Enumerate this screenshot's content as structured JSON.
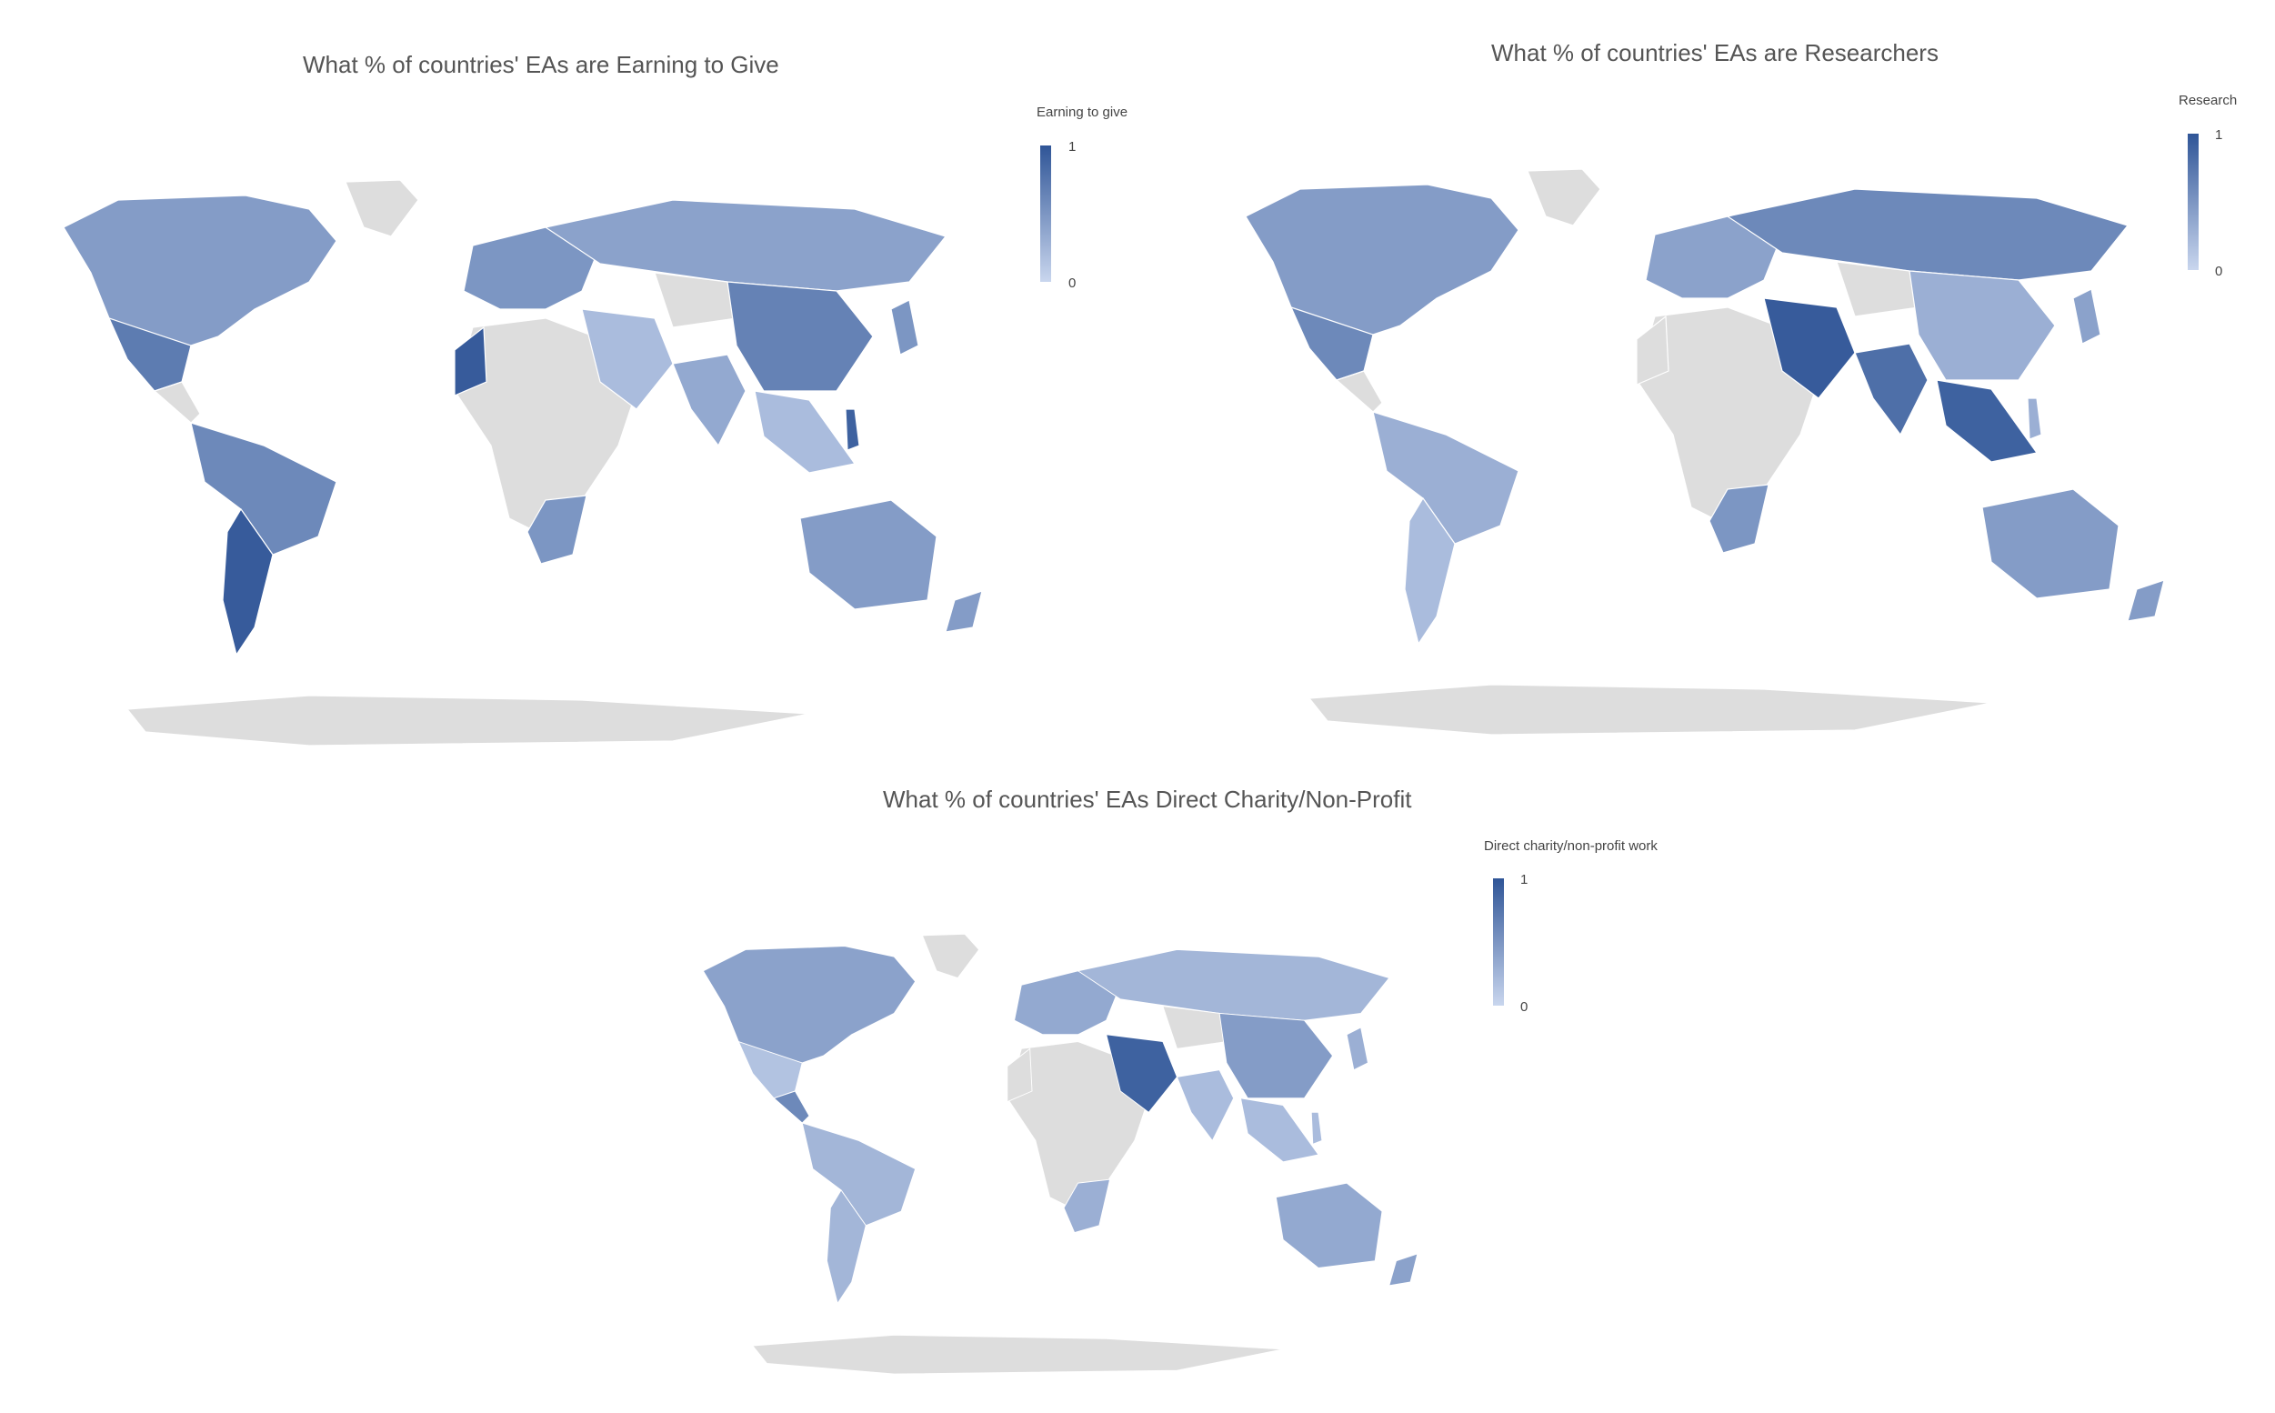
{
  "maps": [
    {
      "id": "earning",
      "title": "What % of countries' EAs are Earning to Give",
      "legend": {
        "title": "Earning to give",
        "max_label": "1",
        "min_label": "0"
      },
      "regions": {
        "north-america": 0.45,
        "greenland": null,
        "mexico": 0.7,
        "central-america": null,
        "south-america": 0.6,
        "argentina": 0.95,
        "europe": 0.5,
        "russia": 0.4,
        "africa": null,
        "morocco": 0.95,
        "southern-africa": 0.5,
        "middle-east": 0.2,
        "central-asia": null,
        "china": 0.65,
        "india": 0.35,
        "southeast-asia": 0.2,
        "philippines": 0.9,
        "japan": 0.5,
        "australia": 0.45,
        "new-zealand": 0.45,
        "antarctica": null
      }
    },
    {
      "id": "research",
      "title": "What % of countries' EAs are Researchers",
      "legend": {
        "title": "Research",
        "max_label": "1",
        "min_label": "0"
      },
      "regions": {
        "north-america": 0.45,
        "greenland": null,
        "mexico": 0.6,
        "central-america": null,
        "south-america": 0.3,
        "argentina": 0.2,
        "europe": 0.4,
        "russia": 0.6,
        "africa": null,
        "morocco": null,
        "southern-africa": 0.5,
        "middle-east": 0.95,
        "central-asia": null,
        "china": 0.3,
        "india": 0.8,
        "southeast-asia": 0.9,
        "philippines": 0.3,
        "japan": 0.4,
        "australia": 0.45,
        "new-zealand": 0.45,
        "antarctica": null
      }
    },
    {
      "id": "charity",
      "title": "What % of countries' EAs Direct Charity/Non-Profit",
      "legend": {
        "title": "Direct charity/non-profit work",
        "max_label": "1",
        "min_label": "0"
      },
      "regions": {
        "north-america": 0.4,
        "greenland": null,
        "mexico": 0.15,
        "central-america": 0.6,
        "south-america": 0.25,
        "argentina": 0.25,
        "europe": 0.35,
        "russia": 0.25,
        "africa": null,
        "morocco": null,
        "southern-africa": 0.3,
        "middle-east": 0.9,
        "central-asia": null,
        "china": 0.45,
        "india": 0.2,
        "southeast-asia": 0.2,
        "philippines": 0.2,
        "japan": 0.3,
        "australia": 0.35,
        "new-zealand": 0.4,
        "antarctica": null
      }
    }
  ],
  "colors": {
    "max": "#2f5597",
    "min": "#c9d6ee",
    "no_data": "#dddddd",
    "border": "#ffffff"
  }
}
